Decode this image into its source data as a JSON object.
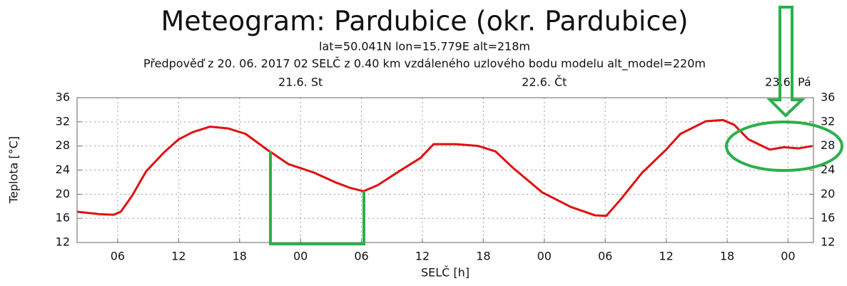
{
  "chart_data": {
    "type": "line",
    "title": "Meteogram: Pardubice (okr. Pardubice)",
    "subtitle": "lat=50.041N lon=15.779E alt=218m",
    "subtitle2": "Předpověď z 20. 06. 2017 02 SELČ z 0.40 km vzdáleného uzlového bodu modelu alt_model=220m",
    "xlabel": "SELČ [h]",
    "ylabel": "Teplota [°C]",
    "day_labels": [
      {
        "x": 24,
        "label": "21.6. St"
      },
      {
        "x": 48,
        "label": "22.6. Čt"
      },
      {
        "x": 72,
        "label": "23.6. Pá"
      }
    ],
    "x": [
      2,
      4.2,
      5.6,
      6.3,
      7.4,
      8.8,
      10.6,
      12.0,
      13.4,
      15.1,
      16.9,
      18.6,
      20.7,
      22.8,
      25.3,
      27.4,
      28.8,
      30.2,
      31.6,
      33.7,
      35.8,
      37.1,
      39.3,
      41.5,
      43.2,
      44.9,
      47.8,
      50.6,
      53.0,
      54.1,
      55.5,
      57.6,
      60.0,
      61.4,
      63.9,
      65.6,
      66.7,
      68.1,
      70.2,
      71.6,
      73.0,
      74.4
    ],
    "series": [
      {
        "name": "Teplota",
        "color": "#e01010",
        "values": [
          17.1,
          16.7,
          16.6,
          17.1,
          19.7,
          23.8,
          27.0,
          29.1,
          30.3,
          31.2,
          30.9,
          30.0,
          27.4,
          25.0,
          23.6,
          22.0,
          21.1,
          20.5,
          21.5,
          23.8,
          26.0,
          28.3,
          28.3,
          28.0,
          27.1,
          24.4,
          20.3,
          17.9,
          16.5,
          16.4,
          19.1,
          23.5,
          27.4,
          30.0,
          32.1,
          32.3,
          31.5,
          29.1,
          27.4,
          27.8,
          27.6,
          28.0
        ]
      }
    ],
    "xlim": [
      2,
      74.5
    ],
    "xticks": [
      {
        "value": 6,
        "label": "06"
      },
      {
        "value": 12,
        "label": "12"
      },
      {
        "value": 18,
        "label": "18"
      },
      {
        "value": 24,
        "label": "00"
      },
      {
        "value": 30,
        "label": "06"
      },
      {
        "value": 36,
        "label": "12"
      },
      {
        "value": 42,
        "label": "18"
      },
      {
        "value": 48,
        "label": "00"
      },
      {
        "value": 54,
        "label": "06"
      },
      {
        "value": 60,
        "label": "12"
      },
      {
        "value": 66,
        "label": "18"
      },
      {
        "value": 72,
        "label": "00"
      }
    ],
    "ylim": [
      12,
      36
    ],
    "yticks": [
      12,
      16,
      20,
      24,
      28,
      32,
      36
    ],
    "y2lim": [
      12,
      36
    ],
    "y2ticks": [
      12,
      16,
      20,
      24,
      28,
      32,
      36
    ],
    "grid": true
  }
}
